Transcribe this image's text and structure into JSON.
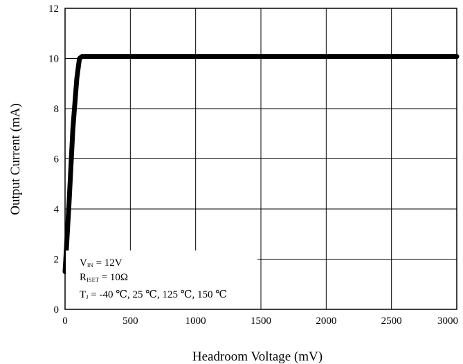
{
  "chart_data": {
    "type": "line",
    "title": "",
    "xlabel": "Headroom Voltage (mV)",
    "ylabel": "Output Current (mA)",
    "xlim": [
      0,
      3000
    ],
    "ylim": [
      0,
      12
    ],
    "xticks": [
      0,
      500,
      1000,
      1500,
      2000,
      2500,
      3000
    ],
    "yticks": [
      0,
      2,
      4,
      6,
      8,
      10,
      12
    ],
    "grid": true,
    "series": [
      {
        "name": "",
        "color": "#000000",
        "x": [
          0,
          30,
          60,
          90,
          110,
          130,
          150,
          300,
          1000,
          2000,
          3000
        ],
        "y": [
          1.5,
          4.2,
          7.2,
          9.2,
          10.0,
          10.08,
          10.08,
          10.08,
          10.08,
          10.08,
          10.08
        ]
      }
    ],
    "annotation": {
      "vin_main": "V",
      "vin_sub": "IN",
      "vin_value": " = 12V",
      "rset_main": "R",
      "rset_sub": "ISET",
      "rset_value": " = 10Ω",
      "tj_main": "T",
      "tj_sub": "J",
      "tj_value": " = -40 ℃, 25 ℃, 125 ℃, 150 ℃"
    }
  }
}
